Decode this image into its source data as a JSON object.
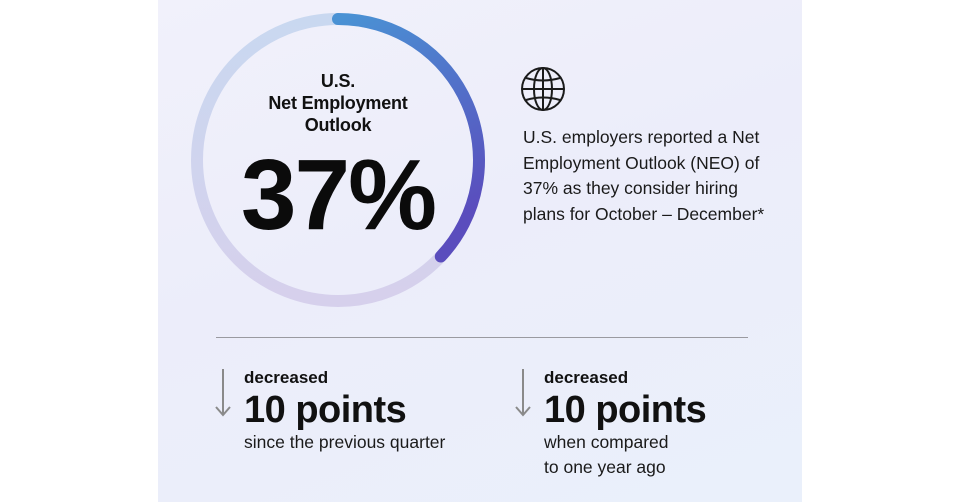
{
  "outlook": {
    "label_lines": [
      "U.S.",
      "Net Employment",
      "Outlook"
    ],
    "value": "37%",
    "progress_percent": 37,
    "colors": {
      "track": "#cfd7f1",
      "arc_start": "#4a90d4",
      "arc_end": "#5b4fbf"
    }
  },
  "summary": {
    "icon": "globe-icon",
    "text": "U.S. employers reported a Net Employment Outlook (NEO) of 37% as they consider hiring plans for October – December*"
  },
  "stats": [
    {
      "kicker": "decreased",
      "value": "10 points",
      "sub_lines": [
        "since the previous quarter"
      ]
    },
    {
      "kicker": "decreased",
      "value": "10 points",
      "sub_lines": [
        "when compared",
        "to one year ago"
      ]
    }
  ]
}
